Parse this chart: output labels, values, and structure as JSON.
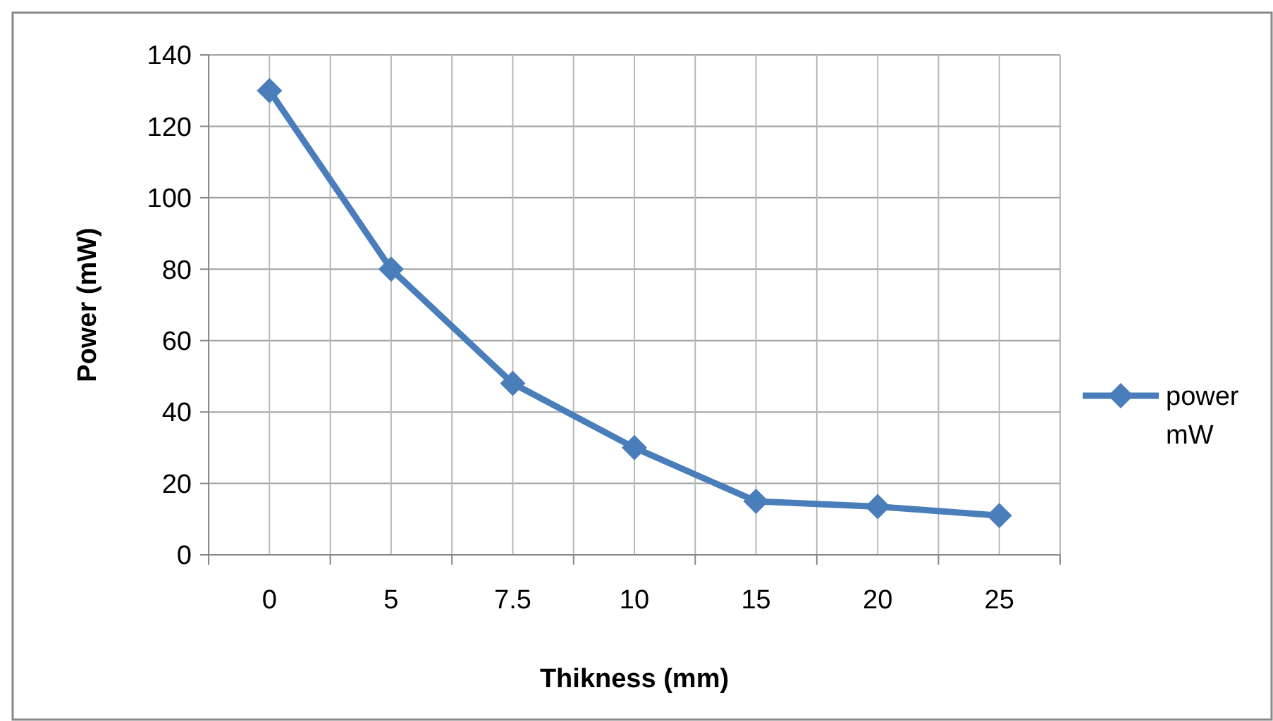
{
  "chart_data": {
    "type": "line",
    "xlabel": "Thikness (mm)",
    "ylabel": "Power (mW)",
    "categories": [
      "0",
      "5",
      "7.5",
      "10",
      "15",
      "20",
      "25"
    ],
    "series": [
      {
        "name": "power mW",
        "color": "#4a7ebb",
        "values": [
          130,
          80,
          48,
          30,
          15,
          13.5,
          11
        ]
      }
    ],
    "ylim": [
      0,
      140
    ],
    "yticks": [
      0,
      20,
      40,
      60,
      80,
      100,
      120,
      140
    ],
    "grid": true,
    "legend": "right",
    "marker": "diamond",
    "line_style": "solid"
  }
}
